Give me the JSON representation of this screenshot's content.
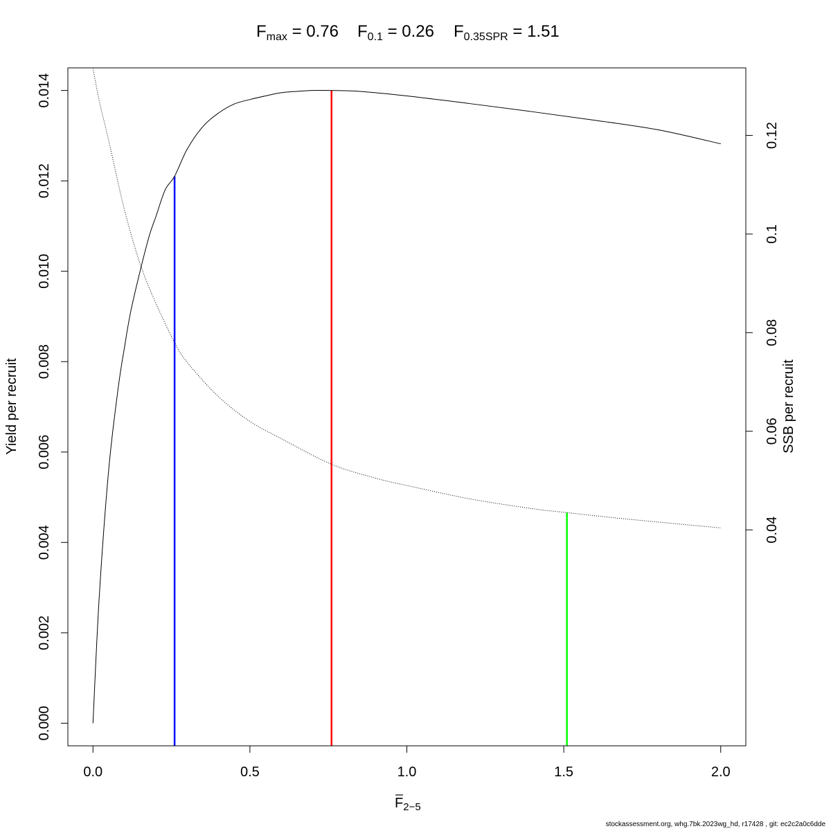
{
  "title": {
    "fmax_main": "F",
    "fmax_sub": "max",
    "fmax_eq": " = 0.76",
    "f01_main": "F",
    "f01_sub": "0.1",
    "f01_eq": " = 0.26",
    "fspr_main": "F",
    "fspr_sub": "0.35SPR",
    "fspr_eq": " = 1.51"
  },
  "footer": "stockassessment.org, whg.7bk.2023wg_hd, r17428 , git: ec2c2a0c6dde",
  "chart_data": {
    "type": "line",
    "xlabel_main": "F",
    "xlabel_sub": "2−5",
    "ylabel_left": "Yield per recruit",
    "ylabel_right": "SSB per recruit",
    "xlim": [
      -0.08,
      2.08
    ],
    "ylim_left": [
      -0.0005,
      0.0145
    ],
    "ylim_right": [
      -0.0038,
      0.1337
    ],
    "x_ticks": [
      0,
      0.5,
      1,
      1.5,
      2
    ],
    "x_tick_labels": [
      "0.0",
      "0.5",
      "1.0",
      "1.5",
      "2.0"
    ],
    "y_left_ticks": [
      0,
      0.002,
      0.004,
      0.006,
      0.008,
      0.01,
      0.012,
      0.014
    ],
    "y_left_tick_labels": [
      "0.000",
      "0.002",
      "0.004",
      "0.006",
      "0.008",
      "0.010",
      "0.012",
      "0.014"
    ],
    "y_right_ticks": [
      0.04,
      0.06,
      0.08,
      0.1,
      0.12
    ],
    "y_right_tick_labels": [
      "0.04",
      "0.06",
      "0.08",
      "0.1",
      "0.12"
    ],
    "series": [
      {
        "axis": "left",
        "style": "solid",
        "color": "#000000",
        "x": [
          0,
          0.02,
          0.05,
          0.08,
          0.1,
          0.12,
          0.15,
          0.18,
          0.2,
          0.23,
          0.26,
          0.3,
          0.35,
          0.4,
          0.45,
          0.5,
          0.55,
          0.6,
          0.65,
          0.7,
          0.76,
          0.85,
          1.0,
          1.2,
          1.4,
          1.6,
          1.8,
          2.0
        ],
        "y": [
          0.0,
          0.0028,
          0.0056,
          0.0074,
          0.0083,
          0.0091,
          0.01,
          0.0108,
          0.0112,
          0.0118,
          0.0121,
          0.0127,
          0.0132,
          0.0135,
          0.0137,
          0.0138,
          0.01388,
          0.01395,
          0.01398,
          0.014,
          0.014,
          0.01398,
          0.01388,
          0.01371,
          0.01353,
          0.01334,
          0.01313,
          0.01282
        ]
      },
      {
        "axis": "right",
        "style": "dotted",
        "color": "#000000",
        "x": [
          0,
          0.02,
          0.05,
          0.1,
          0.15,
          0.2,
          0.26,
          0.3,
          0.4,
          0.5,
          0.6,
          0.76,
          0.9,
          1.0,
          1.2,
          1.4,
          1.51,
          1.7,
          2.0
        ],
        "y": [
          0.1337,
          0.127,
          0.119,
          0.105,
          0.094,
          0.086,
          0.078,
          0.074,
          0.067,
          0.062,
          0.0585,
          0.0533,
          0.0505,
          0.049,
          0.0463,
          0.0443,
          0.0435,
          0.0422,
          0.0404
        ]
      }
    ],
    "reference_lines": [
      {
        "name": "F0.1",
        "x": 0.26,
        "y_top_left": 0.0121,
        "color": "#0000ff"
      },
      {
        "name": "Fmax",
        "x": 0.76,
        "y_top_left": 0.014,
        "color": "#ff0000"
      },
      {
        "name": "F0.35SPR",
        "x": 1.51,
        "y_top_right": 0.0435,
        "color": "#00ff00"
      }
    ]
  }
}
